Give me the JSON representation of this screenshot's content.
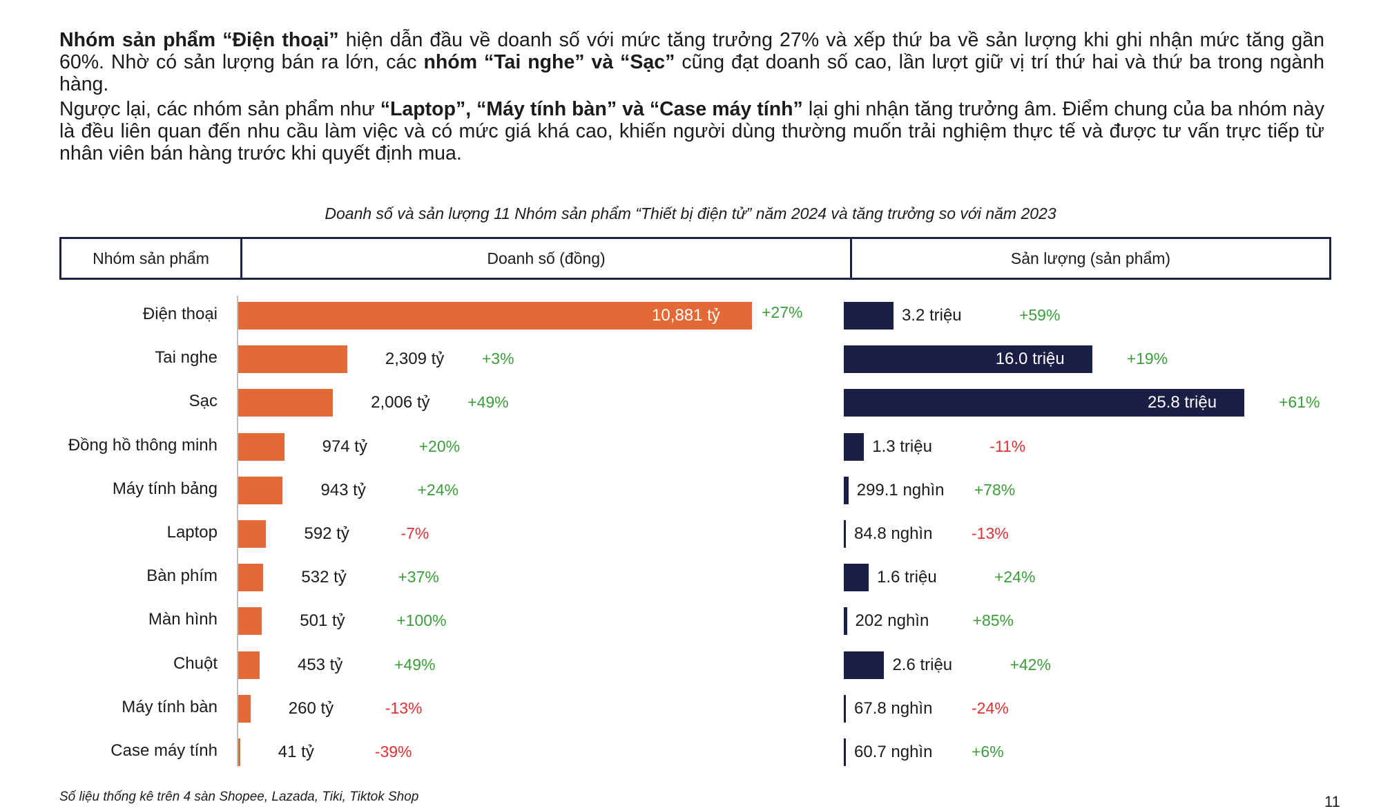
{
  "intro": {
    "p1": [
      {
        "text": "Nhóm sản phẩm “Điện thoại”",
        "bold": true
      },
      {
        "text": " hiện dẫn đầu về doanh số với mức tăng trưởng 27% và xếp thứ ba về sản lượng khi ghi nhận mức tăng gần 60%. Nhờ có sản lượng bán ra lớn, các ",
        "bold": false
      },
      {
        "text": "nhóm “Tai nghe” và “Sạc”",
        "bold": true
      },
      {
        "text": " cũng đạt doanh số cao, lần lượt giữ vị trí thứ hai và thứ ba trong ngành hàng.",
        "bold": false
      }
    ],
    "p2": [
      {
        "text": "Ngược lại, các nhóm sản phẩm như ",
        "bold": false
      },
      {
        "text": "“Laptop”, “Máy tính bàn” và “Case máy tính”",
        "bold": true
      },
      {
        "text": " lại ghi nhận tăng trưởng âm. Điểm chung của ba nhóm này là đều liên quan đến nhu cầu làm việc và có mức giá khá cao, khiến người dùng thường muốn trải nghiệm thực tế và được tư vấn trực tiếp từ nhân viên bán hàng trước khi quyết định mua.",
        "bold": false
      }
    ]
  },
  "chart_data": {
    "type": "bar",
    "title": "Doanh số và sản lượng 11 Nhóm sản phẩm “Thiết bị điện tử” năm 2024 và tăng trưởng so với năm 2023",
    "header": {
      "category": "Nhóm sản phẩm",
      "revenue": "Doanh số (đồng)",
      "volume": "Sản lượng (sản phẩm)"
    },
    "colors": {
      "revenue": "#e36a36",
      "volume": "#1c1f45",
      "positive": "#3a9d3a",
      "negative": "#e03030"
    },
    "categories": [
      "Điện thoại",
      "Tai nghe",
      "Sạc",
      "Đồng hồ thông minh",
      "Máy tính bảng",
      "Laptop",
      "Bàn phím",
      "Màn hình",
      "Chuột",
      "Máy tính bàn",
      "Case máy tính"
    ],
    "series": [
      {
        "key": "revenue",
        "values": [
          10881,
          2309,
          2006,
          974,
          943,
          592,
          532,
          501,
          453,
          260,
          41
        ],
        "labels": [
          "10,881 tỷ",
          "2,309 tỷ",
          "2,006 tỷ",
          "974 tỷ",
          "943 tỷ",
          "592 tỷ",
          "532 tỷ",
          "501 tỷ",
          "453 tỷ",
          "260 tỷ",
          "41 tỷ"
        ],
        "growth": [
          "+27%",
          "+3%",
          "+49%",
          "+20%",
          "+24%",
          "-7%",
          "+37%",
          "+100%",
          "+49%",
          "-13%",
          "-39%"
        ]
      },
      {
        "key": "volume",
        "values": [
          3.2,
          16.0,
          25.8,
          1.3,
          0.2991,
          0.0848,
          1.6,
          0.202,
          2.6,
          0.0678,
          0.0607
        ],
        "labels": [
          "3.2 triệu",
          "16.0 triệu",
          "25.8 triệu",
          "1.3 triệu",
          "299.1 nghìn",
          "84.8 nghìn",
          "1.6 triệu",
          "202 nghìn",
          "2.6 triệu",
          "67.8 nghìn",
          "60.7 nghìn"
        ],
        "growth": [
          "+59%",
          "+19%",
          "+61%",
          "-11%",
          "+78%",
          "-13%",
          "+24%",
          "+85%",
          "+42%",
          "-24%",
          "+6%"
        ]
      }
    ]
  },
  "footnote": "Số liệu thống kê trên 4 sàn Shopee, Lazada, Tiki, Tiktok Shop",
  "page_number": "11"
}
